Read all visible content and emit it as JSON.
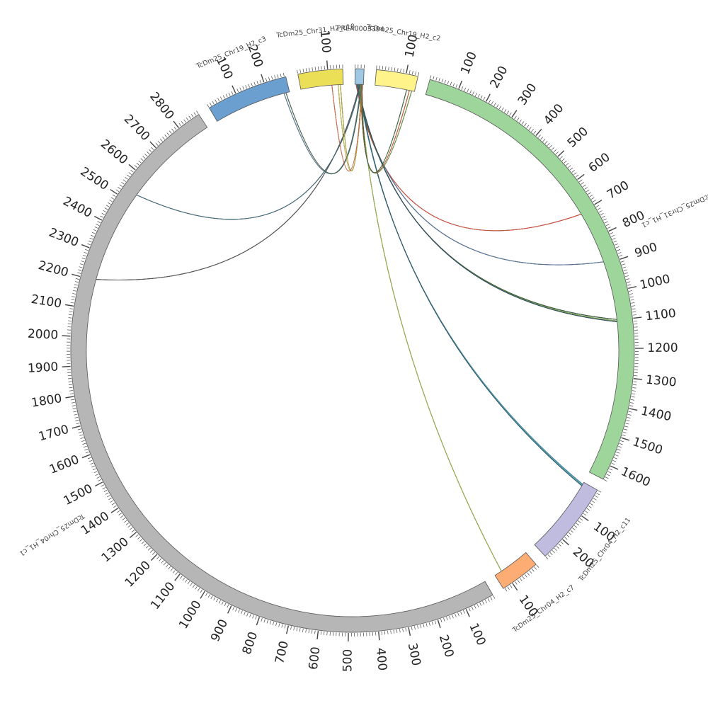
{
  "chart_data": {
    "type": "chord",
    "segments": [
      {
        "name": "PREA0003394",
        "color": "#9ec8e4",
        "span": 30,
        "ticks": [],
        "label_side": "top"
      },
      {
        "name": "TcDm25_Chr19_H2_c2",
        "color": "#fff38a",
        "span": 140,
        "ticks": [
          100
        ],
        "label_side": "top"
      },
      {
        "name": "TcDm25_Chr31_H1_c1",
        "color": "#9ed59b",
        "span": 1650,
        "ticks": [
          100,
          200,
          300,
          400,
          500,
          600,
          700,
          800,
          900,
          1000,
          1100,
          1200,
          1300,
          1400,
          1500,
          1600
        ],
        "label_side": "right"
      },
      {
        "name": "TcDm25_Chr04_H2_c11",
        "color": "#bfbce0",
        "span": 280,
        "ticks": [
          100,
          200
        ],
        "label_side": "right"
      },
      {
        "name": "TcDm25_Chr04_H2_c7",
        "color": "#fdad74",
        "span": 135,
        "ticks": [
          100
        ],
        "label_side": "bottom"
      },
      {
        "name": "TcDm25_Chr04_H1_c1",
        "color": "#b6b6b6",
        "span": 2880,
        "ticks": [
          100,
          200,
          300,
          400,
          500,
          600,
          700,
          800,
          900,
          1000,
          1100,
          1200,
          1300,
          1400,
          1500,
          1600,
          1700,
          1800,
          1900,
          2000,
          2100,
          2200,
          2300,
          2400,
          2500,
          2600,
          2700,
          2800
        ],
        "label_side": "left"
      },
      {
        "name": "TcDm25_Chr19_H2_c3",
        "color": "#6a9fd0",
        "span": 275,
        "ticks": [
          100,
          200
        ],
        "label_side": "top"
      },
      {
        "name": "TcDm25_Chr31_H2_c10",
        "color": "#ebdf58",
        "span": 150,
        "ticks": [
          100
        ],
        "label_side": "top"
      }
    ],
    "links": [
      {
        "from": [
          0,
          4
        ],
        "to": [
          2,
          705
        ],
        "color": "#d6503c"
      },
      {
        "from": [
          0,
          6
        ],
        "to": [
          2,
          890
        ],
        "color": "#5a7aa0"
      },
      {
        "from": [
          0,
          8
        ],
        "to": [
          2,
          1098
        ],
        "color": "#3d5f3a"
      },
      {
        "from": [
          0,
          9
        ],
        "to": [
          2,
          1103
        ],
        "color": "#7fae52"
      },
      {
        "from": [
          0,
          10
        ],
        "to": [
          2,
          1106
        ],
        "color": "#2e5066"
      },
      {
        "from": [
          0,
          12
        ],
        "to": [
          3,
          8
        ],
        "color": "#3f8fb0"
      },
      {
        "from": [
          0,
          13
        ],
        "to": [
          3,
          11
        ],
        "color": "#66b8c4"
      },
      {
        "from": [
          0,
          14
        ],
        "to": [
          3,
          14
        ],
        "color": "#2f6070"
      },
      {
        "from": [
          0,
          15
        ],
        "to": [
          4,
          108
        ],
        "color": "#98b54a"
      },
      {
        "from": [
          0,
          17
        ],
        "to": [
          5,
          2205
        ],
        "color": "#555555"
      },
      {
        "from": [
          0,
          19
        ],
        "to": [
          5,
          2535
        ],
        "color": "#3c6a7a"
      },
      {
        "from": [
          0,
          21
        ],
        "to": [
          6,
          255
        ],
        "color": "#5f7f99"
      },
      {
        "from": [
          0,
          23
        ],
        "to": [
          6,
          262
        ],
        "color": "#4a6a50"
      },
      {
        "from": [
          0,
          24
        ],
        "to": [
          7,
          140
        ],
        "color": "#b3a832"
      },
      {
        "from": [
          0,
          26
        ],
        "to": [
          7,
          132
        ],
        "color": "#c9c04a"
      },
      {
        "from": [
          0,
          27
        ],
        "to": [
          7,
          110
        ],
        "color": "#d9704a"
      },
      {
        "from": [
          1,
          130
        ],
        "to": [
          0,
          20
        ],
        "color": "#6d9a3a"
      },
      {
        "from": [
          1,
          122
        ],
        "to": [
          0,
          22
        ],
        "color": "#cc5a3c"
      },
      {
        "from": [
          1,
          112
        ],
        "to": [
          0,
          25
        ],
        "color": "#3d6a40"
      }
    ]
  }
}
